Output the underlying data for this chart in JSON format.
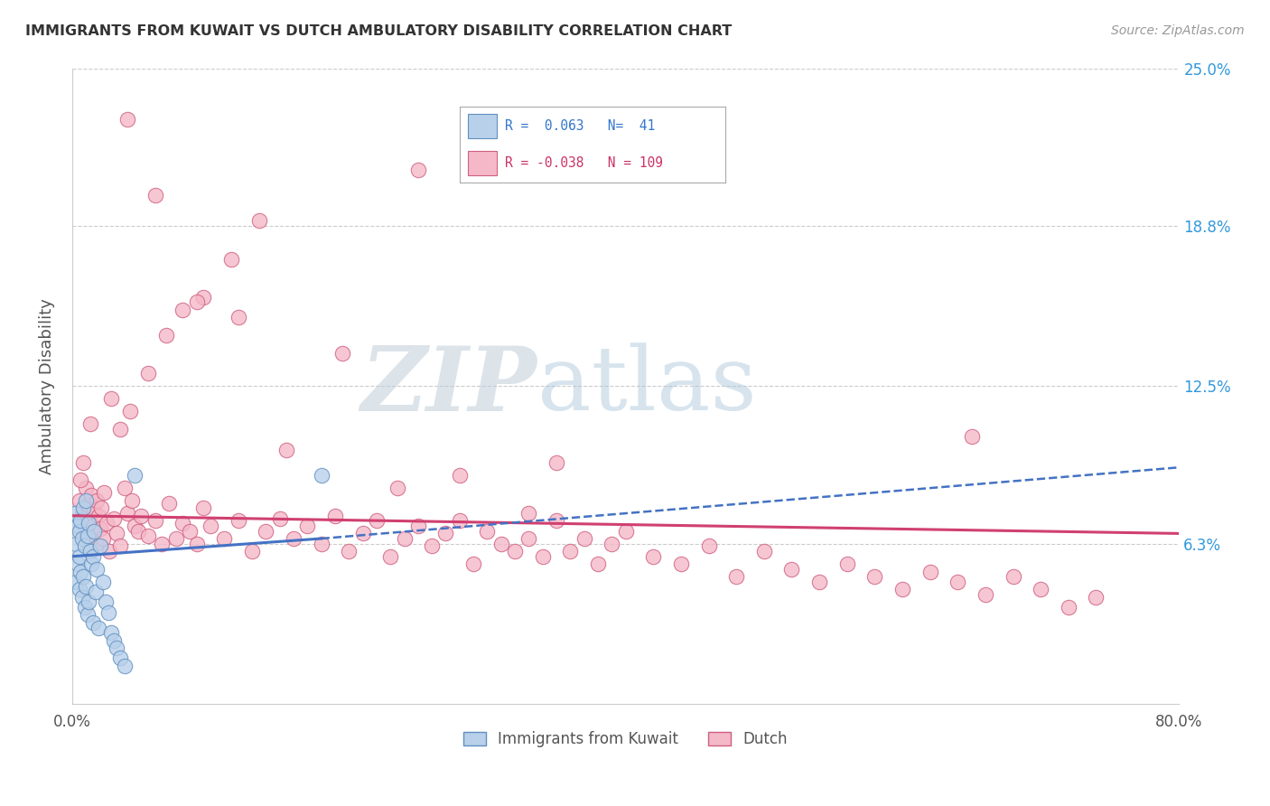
{
  "title": "IMMIGRANTS FROM KUWAIT VS DUTCH AMBULATORY DISABILITY CORRELATION CHART",
  "source": "Source: ZipAtlas.com",
  "ylabel": "Ambulatory Disability",
  "xlim": [
    0.0,
    0.8
  ],
  "ylim": [
    0.0,
    0.25
  ],
  "ytick_vals": [
    0.063,
    0.125,
    0.188,
    0.25
  ],
  "ytick_labels": [
    "6.3%",
    "12.5%",
    "18.8%",
    "25.0%"
  ],
  "legend_entries": [
    {
      "label": "Immigrants from Kuwait",
      "R": 0.063,
      "N": 41,
      "color_fill": "#b8d0ea",
      "color_edge": "#6090c0"
    },
    {
      "label": "Dutch",
      "R": -0.038,
      "N": 109,
      "color_fill": "#f4b8c8",
      "color_edge": "#d06080"
    }
  ],
  "watermark": "ZIPatlas",
  "blue_scatter_x": [
    0.002,
    0.003,
    0.003,
    0.004,
    0.004,
    0.005,
    0.005,
    0.005,
    0.006,
    0.006,
    0.007,
    0.007,
    0.008,
    0.008,
    0.009,
    0.009,
    0.01,
    0.01,
    0.011,
    0.011,
    0.012,
    0.012,
    0.013,
    0.014,
    0.015,
    0.015,
    0.016,
    0.017,
    0.018,
    0.019,
    0.02,
    0.022,
    0.024,
    0.026,
    0.028,
    0.03,
    0.032,
    0.035,
    0.038,
    0.045,
    0.18
  ],
  "blue_scatter_y": [
    0.075,
    0.063,
    0.048,
    0.07,
    0.055,
    0.068,
    0.058,
    0.045,
    0.072,
    0.052,
    0.065,
    0.042,
    0.077,
    0.05,
    0.062,
    0.038,
    0.08,
    0.046,
    0.066,
    0.035,
    0.071,
    0.04,
    0.06,
    0.055,
    0.058,
    0.032,
    0.068,
    0.044,
    0.053,
    0.03,
    0.062,
    0.048,
    0.04,
    0.036,
    0.028,
    0.025,
    0.022,
    0.018,
    0.015,
    0.09,
    0.09
  ],
  "pink_scatter_x": [
    0.005,
    0.007,
    0.009,
    0.01,
    0.011,
    0.012,
    0.013,
    0.014,
    0.015,
    0.016,
    0.017,
    0.018,
    0.019,
    0.02,
    0.021,
    0.022,
    0.023,
    0.025,
    0.027,
    0.03,
    0.032,
    0.035,
    0.038,
    0.04,
    0.043,
    0.045,
    0.048,
    0.05,
    0.055,
    0.06,
    0.065,
    0.07,
    0.075,
    0.08,
    0.085,
    0.09,
    0.095,
    0.1,
    0.11,
    0.12,
    0.13,
    0.14,
    0.15,
    0.16,
    0.17,
    0.18,
    0.19,
    0.2,
    0.21,
    0.22,
    0.23,
    0.24,
    0.25,
    0.26,
    0.27,
    0.28,
    0.29,
    0.3,
    0.31,
    0.32,
    0.33,
    0.34,
    0.35,
    0.36,
    0.37,
    0.38,
    0.39,
    0.4,
    0.42,
    0.44,
    0.46,
    0.48,
    0.5,
    0.52,
    0.54,
    0.56,
    0.58,
    0.6,
    0.62,
    0.64,
    0.66,
    0.68,
    0.7,
    0.72,
    0.74,
    0.006,
    0.008,
    0.013,
    0.028,
    0.035,
    0.042,
    0.055,
    0.068,
    0.08,
    0.095,
    0.115,
    0.135,
    0.25,
    0.65,
    0.35,
    0.04,
    0.06,
    0.09,
    0.12,
    0.155,
    0.195,
    0.235,
    0.28,
    0.33
  ],
  "pink_scatter_y": [
    0.08,
    0.075,
    0.068,
    0.085,
    0.072,
    0.078,
    0.065,
    0.082,
    0.07,
    0.076,
    0.063,
    0.08,
    0.074,
    0.069,
    0.077,
    0.065,
    0.083,
    0.071,
    0.06,
    0.073,
    0.067,
    0.062,
    0.085,
    0.075,
    0.08,
    0.07,
    0.068,
    0.074,
    0.066,
    0.072,
    0.063,
    0.079,
    0.065,
    0.071,
    0.068,
    0.063,
    0.077,
    0.07,
    0.065,
    0.072,
    0.06,
    0.068,
    0.073,
    0.065,
    0.07,
    0.063,
    0.074,
    0.06,
    0.067,
    0.072,
    0.058,
    0.065,
    0.07,
    0.062,
    0.067,
    0.072,
    0.055,
    0.068,
    0.063,
    0.06,
    0.065,
    0.058,
    0.072,
    0.06,
    0.065,
    0.055,
    0.063,
    0.068,
    0.058,
    0.055,
    0.062,
    0.05,
    0.06,
    0.053,
    0.048,
    0.055,
    0.05,
    0.045,
    0.052,
    0.048,
    0.043,
    0.05,
    0.045,
    0.038,
    0.042,
    0.088,
    0.095,
    0.11,
    0.12,
    0.108,
    0.115,
    0.13,
    0.145,
    0.155,
    0.16,
    0.175,
    0.19,
    0.21,
    0.105,
    0.095,
    0.23,
    0.2,
    0.158,
    0.152,
    0.1,
    0.138,
    0.085,
    0.09,
    0.075
  ],
  "bg_color": "#ffffff",
  "grid_color": "#cccccc",
  "blue_line_color": "#4472c4",
  "pink_line_color": "#d04070",
  "title_color": "#333333"
}
